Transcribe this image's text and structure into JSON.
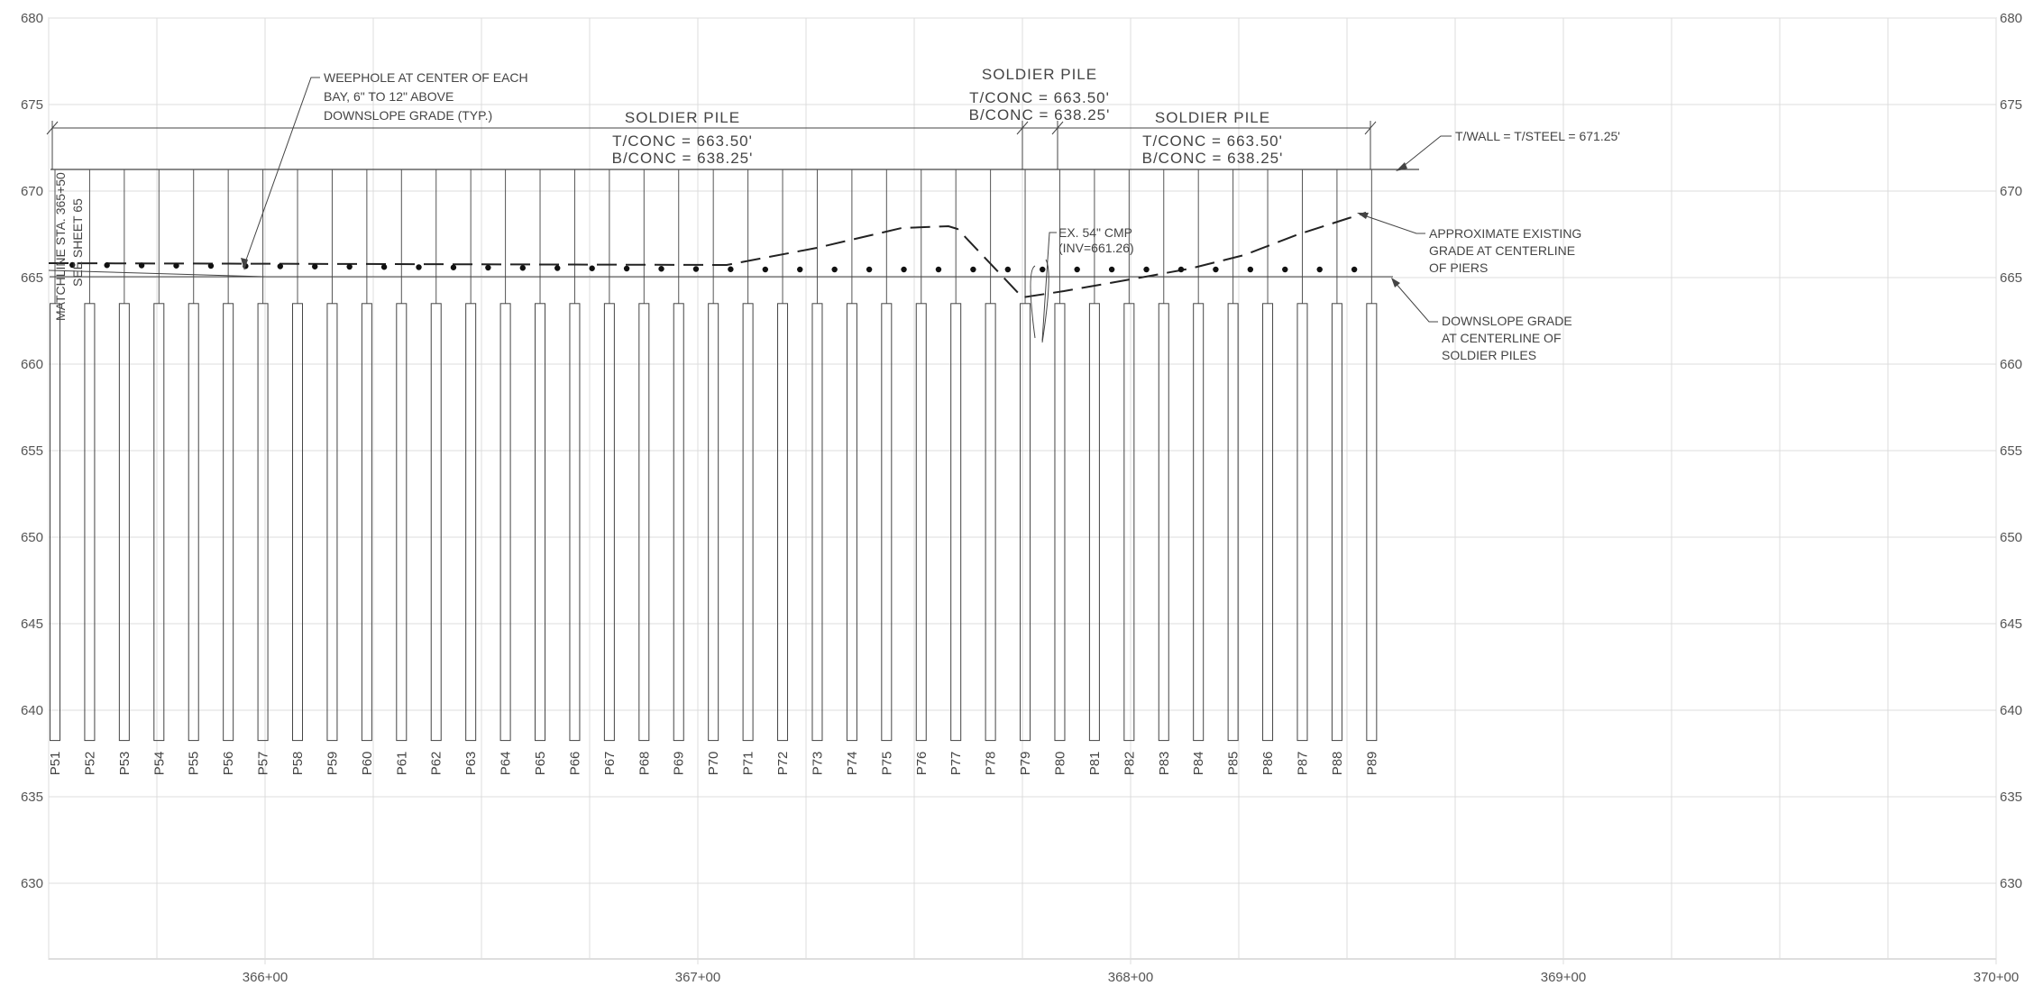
{
  "elevation_axis": {
    "labels": [
      "680",
      "675",
      "670",
      "665",
      "660",
      "655",
      "650",
      "645",
      "640",
      "635",
      "630"
    ],
    "values": [
      680,
      675,
      670,
      665,
      660,
      655,
      650,
      645,
      640,
      635,
      630
    ]
  },
  "station_axis": {
    "labels": [
      "366+00",
      "367+00",
      "368+00",
      "369+00",
      "370+00"
    ],
    "values": [
      366,
      367,
      368,
      369,
      370
    ]
  },
  "piles": {
    "labels": [
      "P51",
      "P52",
      "P53",
      "P54",
      "P55",
      "P56",
      "P57",
      "P58",
      "P59",
      "P60",
      "P61",
      "P62",
      "P63",
      "P64",
      "P65",
      "P66",
      "P67",
      "P68",
      "P69",
      "P70",
      "P71",
      "P72",
      "P73",
      "P74",
      "P75",
      "P76",
      "P77",
      "P78",
      "P79",
      "P80",
      "P81",
      "P82",
      "P83",
      "P84",
      "P85",
      "P86",
      "P87",
      "P88",
      "P89"
    ],
    "top_of_wall_elevation": 671.25,
    "top_of_concrete_elevation": 663.5,
    "bottom_of_concrete_elevation": 638.25
  },
  "matchline": {
    "line1": "MATCHLINE STA. 365+50",
    "line2": "SEE SHEET 65"
  },
  "sections": [
    {
      "title": "SOLDIER PILE",
      "tconc": "T/CONC = 663.50'",
      "bconc": "B/CONC = 638.25'"
    },
    {
      "title": "SOLDIER PILE",
      "tconc": "T/CONC = 663.50'",
      "bconc": "B/CONC = 638.25'"
    },
    {
      "title": "SOLDIER PILE",
      "tconc": "T/CONC = 663.50'",
      "bconc": "B/CONC = 638.25'"
    }
  ],
  "notes": {
    "weephole": [
      "WEEPHOLE AT CENTER OF EACH",
      "BAY, 6\" TO 12\" ABOVE",
      "DOWNSLOPE GRADE (TYP.)"
    ],
    "twall": "T/WALL = T/STEEL = 671.25'",
    "cmp": [
      "EX. 54\" CMP",
      "(INV=661.26)"
    ],
    "existing_grade": [
      "APPROXIMATE EXISTING",
      "GRADE AT CENTERLINE",
      "OF PIERS"
    ],
    "downslope": [
      "DOWNSLOPE GRADE",
      "AT CENTERLINE OF",
      "SOLDIER PILES"
    ]
  }
}
